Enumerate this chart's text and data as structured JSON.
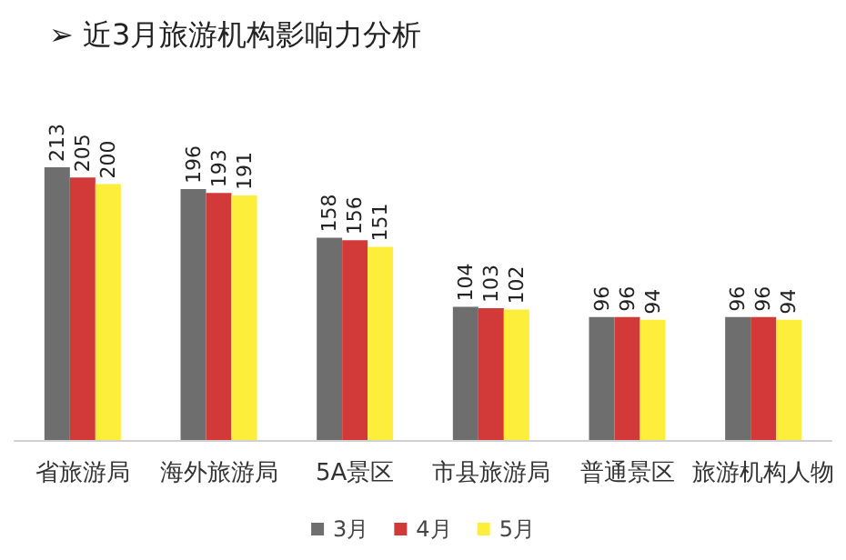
{
  "chart_data": {
    "type": "bar",
    "title": "➢ 近3月旅游机构影响力分析",
    "categories": [
      "省旅游局",
      "海外旅游局",
      "5A景区",
      "市县旅游局",
      "普通景区",
      "旅游机构人物"
    ],
    "series": [
      {
        "name": "3月",
        "color": "#6e6e6e",
        "values": [
          213,
          196,
          158,
          104,
          96,
          96
        ]
      },
      {
        "name": "4月",
        "color": "#d23a3a",
        "values": [
          205,
          193,
          156,
          103,
          96,
          96
        ]
      },
      {
        "name": "5月",
        "color": "#fcee3a",
        "values": [
          200,
          191,
          151,
          102,
          94,
          94
        ]
      }
    ],
    "data_labels": true,
    "legend": "bottom"
  }
}
